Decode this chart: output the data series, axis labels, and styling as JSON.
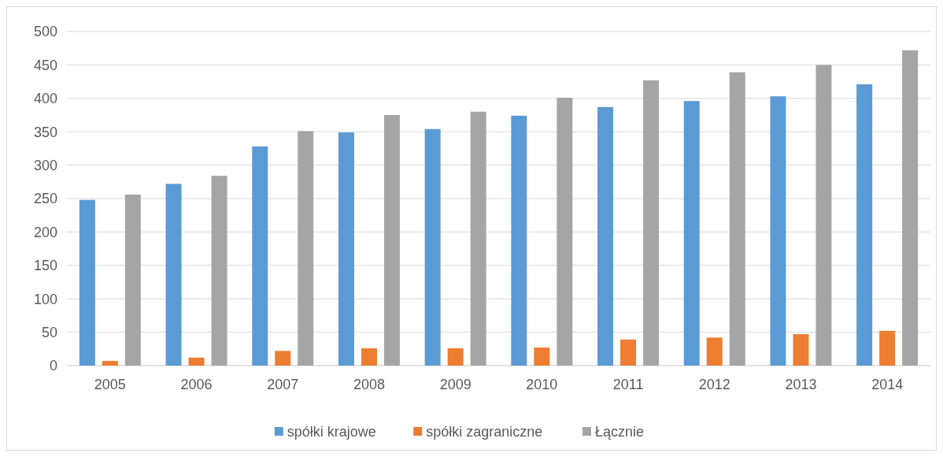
{
  "chart_data": {
    "type": "bar",
    "categories": [
      "2005",
      "2006",
      "2007",
      "2008",
      "2009",
      "2010",
      "2011",
      "2012",
      "2013",
      "2014"
    ],
    "series": [
      {
        "name": "spółki krajowe",
        "color": "#5b9bd5",
        "values": [
          248,
          272,
          328,
          349,
          354,
          374,
          387,
          396,
          403,
          421
        ]
      },
      {
        "name": "spółki zagraniczne",
        "color": "#ed7d31",
        "values": [
          7,
          12,
          22,
          26,
          26,
          27,
          39,
          42,
          47,
          52
        ]
      },
      {
        "name": "Łącznie",
        "color": "#a5a5a5",
        "values": [
          256,
          284,
          351,
          375,
          380,
          401,
          427,
          439,
          450,
          472
        ]
      }
    ],
    "ylim": [
      0,
      500
    ],
    "yticks": [
      0,
      50,
      100,
      150,
      200,
      250,
      300,
      350,
      400,
      450,
      500
    ],
    "grid": "y",
    "legend": "bottom"
  }
}
